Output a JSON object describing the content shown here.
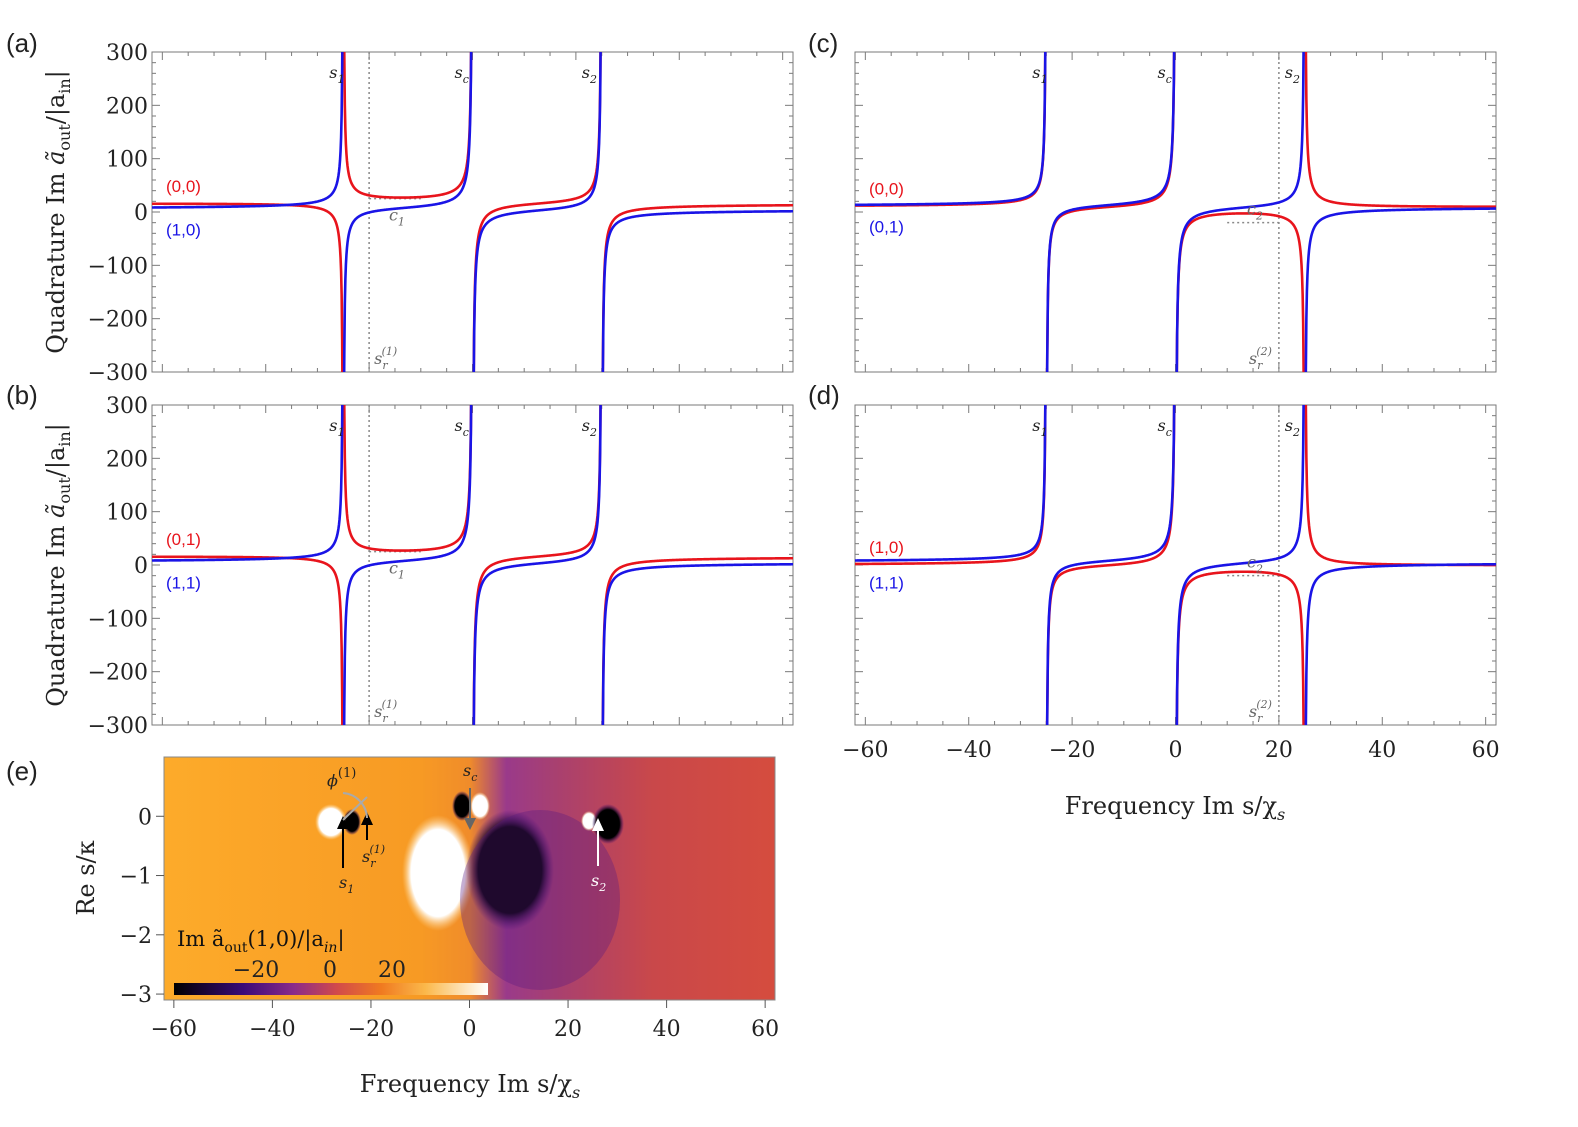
{
  "colors": {
    "red": "#e8141c",
    "blue": "#1a14e6",
    "guide": "#888888",
    "frame": "#7a7a7a"
  },
  "labels": {
    "ylabel_main": "Quadrature Im",
    "ylabel_sym": "ã",
    "ylabel_sub": "out",
    "ylabel_tail": "/|a",
    "ylabel_sub2": "in",
    "ylabel_end": "|",
    "xlabel": "Frequency Im s/χ",
    "xlabel_sub": "s",
    "e_ylabel": "Re s/κ",
    "e_xlabel": "Frequency Im s/χ",
    "e_xlabel_sub": "s",
    "s1": "s",
    "s1_sub": "1",
    "sc": "s",
    "sc_sub": "c",
    "s2": "s",
    "s2_sub": "2",
    "c1": "c",
    "c1_sub": "1",
    "c2": "c",
    "c2_sub": "2",
    "sr1": "s",
    "sr1_sub": "r",
    "sr1_sup": "(1)",
    "sr2": "s",
    "sr2_sub": "r",
    "sr2_sup": "(2)",
    "phi": "ϕ",
    "phi_sup": "(1)",
    "colorbar_title": "Im ã",
    "colorbar_title_sub": "out",
    "colorbar_title_tail": "(1,0)/|a",
    "colorbar_title_sub2": "in",
    "colorbar_title_end": "|"
  },
  "chart_data": [
    {
      "panel": "(a)",
      "type": "line",
      "xlim": [
        -62,
        62
      ],
      "ylim": [
        -300,
        300
      ],
      "yticks": [
        -300,
        -200,
        -100,
        0,
        100,
        200,
        300
      ],
      "yticklabels": [
        "−300",
        "−200",
        "−100",
        "0",
        "100",
        "200",
        "300"
      ],
      "series": [
        {
          "name": "(0,0)",
          "color": "#e8141c",
          "offset": 0
        },
        {
          "name": "(1,0)",
          "color": "#1a14e6",
          "offset": 0
        }
      ],
      "poles": {
        "s1": -25,
        "sc": 0,
        "s2": 25
      },
      "markers": {
        "sr": -20,
        "c": 25
      }
    },
    {
      "panel": "(b)",
      "type": "line",
      "xlim": [
        -62,
        62
      ],
      "ylim": [
        -300,
        300
      ],
      "yticks": [
        -300,
        -200,
        -100,
        0,
        100,
        200,
        300
      ],
      "yticklabels": [
        "−300",
        "−200",
        "−100",
        "0",
        "100",
        "200",
        "300"
      ],
      "series": [
        {
          "name": "(0,1)",
          "color": "#e8141c"
        },
        {
          "name": "(1,1)",
          "color": "#1a14e6"
        }
      ],
      "poles": {
        "s1": -25,
        "sc": 0,
        "s2": 25
      },
      "markers": {
        "sr": -20,
        "c": 25
      }
    },
    {
      "panel": "(c)",
      "type": "line",
      "xlim": [
        -62,
        62
      ],
      "ylim": [
        -300,
        300
      ],
      "series": [
        {
          "name": "(0,0)",
          "color": "#e8141c"
        },
        {
          "name": "(0,1)",
          "color": "#1a14e6"
        }
      ],
      "poles": {
        "s1": -25,
        "sc": 0,
        "s2": 25
      },
      "markers": {
        "sr": 20,
        "c": -20
      }
    },
    {
      "panel": "(d)",
      "type": "line",
      "xlim": [
        -62,
        62
      ],
      "ylim": [
        -300,
        300
      ],
      "xticks": [
        -60,
        -40,
        -20,
        0,
        20,
        40,
        60
      ],
      "xticklabels": [
        "−60",
        "−40",
        "−20",
        "0",
        "20",
        "40",
        "60"
      ],
      "series": [
        {
          "name": "(1,0)",
          "color": "#e8141c"
        },
        {
          "name": "(1,1)",
          "color": "#1a14e6"
        }
      ],
      "poles": {
        "s1": -25,
        "sc": 0,
        "s2": 25
      },
      "markers": {
        "sr": 20,
        "c": -20
      }
    },
    {
      "panel": "(e)",
      "type": "heatmap",
      "xlim": [
        -62,
        62
      ],
      "ylim": [
        -3.1,
        1.0
      ],
      "xticks": [
        -60,
        -40,
        -20,
        0,
        20,
        40,
        60
      ],
      "xticklabels": [
        "−60",
        "−40",
        "−20",
        "0",
        "20",
        "40",
        "60"
      ],
      "yticks": [
        -3,
        -2,
        -1,
        0
      ],
      "yticklabels": [
        "−3",
        "−2",
        "−1",
        "0"
      ],
      "colorbar_ticks": [
        "−20",
        "0",
        "20"
      ],
      "colorbar_range": [
        -35,
        35
      ],
      "poles": {
        "s1": -25,
        "sc": 0,
        "s2": 25
      },
      "sr": -20
    }
  ]
}
